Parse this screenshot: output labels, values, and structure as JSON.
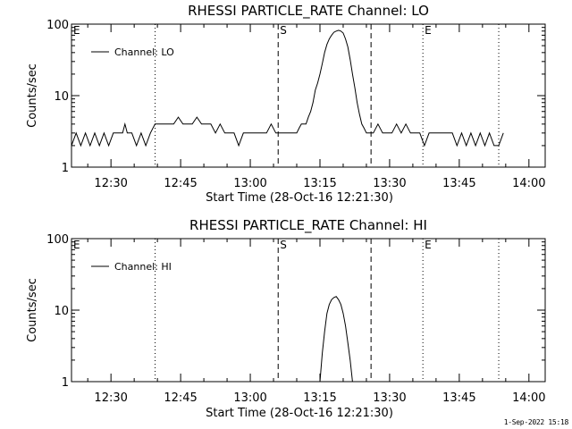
{
  "footer": {
    "timestamp": "1-Sep-2022 15:18"
  },
  "chart_data": [
    {
      "type": "line",
      "title": "RHESSI PARTICLE_RATE Channel: LO",
      "xlabel": "Start Time (28-Oct-16 12:21:30)",
      "ylabel": "Counts/sec",
      "yscale": "log",
      "ylim": [
        1,
        100
      ],
      "xlim": [
        "12:21:30",
        "14:03:30"
      ],
      "xticks": [
        "12:30",
        "12:45",
        "13:00",
        "13:15",
        "13:30",
        "13:45",
        "14:00"
      ],
      "yticks": [
        "1",
        "10",
        "100"
      ],
      "legend": {
        "position": "top-left",
        "entries": [
          "Channel: LO"
        ]
      },
      "grid": false,
      "markers": [
        {
          "label": "E",
          "time": "12:21:30",
          "style": "dotted"
        },
        {
          "label": "",
          "time": "12:39:30",
          "style": "dotted"
        },
        {
          "label": "S",
          "time": "13:06:00",
          "style": "dashed"
        },
        {
          "label": "",
          "time": "13:26:00",
          "style": "dashed"
        },
        {
          "label": "E",
          "time": "13:37:10",
          "style": "dotted"
        },
        {
          "label": "",
          "time": "13:53:30",
          "style": "dotted"
        }
      ],
      "series": [
        {
          "name": "Channel: LO",
          "x": [
            "12:21:30",
            "12:22:30",
            "12:23:30",
            "12:24:30",
            "12:25:30",
            "12:26:30",
            "12:27:30",
            "12:28:30",
            "12:29:30",
            "12:30:30",
            "12:31:30",
            "12:32:30",
            "12:33:00",
            "12:33:30",
            "12:34:30",
            "12:35:30",
            "12:36:30",
            "12:37:30",
            "12:38:30",
            "12:39:30",
            "12:40:30",
            "12:42:00",
            "12:43:30",
            "12:44:30",
            "12:45:30",
            "12:46:30",
            "12:47:30",
            "12:48:30",
            "12:49:30",
            "12:50:30",
            "12:51:30",
            "12:52:30",
            "12:53:30",
            "12:54:30",
            "12:55:30",
            "12:56:30",
            "12:57:30",
            "12:58:30",
            "12:59:30",
            "13:00:30",
            "13:01:30",
            "13:02:30",
            "13:03:30",
            "13:04:30",
            "13:05:30",
            "13:06:30",
            "13:07:30",
            "13:08:30",
            "13:09:30",
            "13:10:00",
            "13:10:30",
            "13:11:00",
            "13:11:30",
            "13:12:00",
            "13:12:30",
            "13:13:00",
            "13:13:30",
            "13:14:00",
            "13:14:30",
            "13:15:00",
            "13:15:30",
            "13:16:00",
            "13:16:30",
            "13:17:00",
            "13:17:30",
            "13:18:00",
            "13:18:30",
            "13:19:00",
            "13:19:30",
            "13:20:00",
            "13:20:30",
            "13:21:00",
            "13:21:30",
            "13:22:00",
            "13:22:30",
            "13:23:00",
            "13:23:30",
            "13:24:00",
            "13:24:30",
            "13:25:00",
            "13:25:30",
            "13:26:30",
            "13:27:30",
            "13:28:30",
            "13:29:30",
            "13:30:30",
            "13:31:30",
            "13:32:30",
            "13:33:30",
            "13:34:30",
            "13:35:30",
            "13:36:30",
            "13:37:30",
            "13:38:30",
            "13:39:30",
            "13:40:30",
            "13:41:30",
            "13:42:30",
            "13:43:30",
            "13:44:30",
            "13:45:30",
            "13:46:30",
            "13:47:30",
            "13:48:30",
            "13:49:30",
            "13:50:30",
            "13:51:30",
            "13:52:30",
            "13:53:30",
            "13:54:30"
          ],
          "y": [
            2,
            3,
            2,
            3,
            2,
            3,
            2,
            3,
            2,
            3,
            3,
            3,
            4,
            3,
            3,
            2,
            3,
            2,
            3,
            4,
            4,
            4,
            4,
            5,
            4,
            4,
            4,
            5,
            4,
            4,
            4,
            3,
            4,
            3,
            3,
            3,
            2,
            3,
            3,
            3,
            3,
            3,
            3,
            4,
            3,
            3,
            3,
            3,
            3,
            3,
            3.5,
            4,
            4,
            4,
            5,
            6,
            8,
            12,
            15,
            20,
            28,
            40,
            52,
            62,
            70,
            77,
            80,
            82,
            80,
            75,
            62,
            48,
            32,
            20,
            13,
            8,
            5.5,
            4,
            3.5,
            3,
            3,
            3,
            4,
            3,
            3,
            3,
            4,
            3,
            4,
            3,
            3,
            3,
            2,
            3,
            3,
            3,
            3,
            3,
            3,
            2,
            3,
            2,
            3,
            2,
            3,
            2,
            3,
            2,
            2,
            3
          ]
        }
      ]
    },
    {
      "type": "line",
      "title": "RHESSI PARTICLE_RATE Channel: HI",
      "xlabel": "Start Time (28-Oct-16 12:21:30)",
      "ylabel": "Counts/sec",
      "yscale": "log",
      "ylim": [
        1,
        100
      ],
      "xlim": [
        "12:21:30",
        "14:03:30"
      ],
      "xticks": [
        "12:30",
        "12:45",
        "13:00",
        "13:15",
        "13:30",
        "13:45",
        "14:00"
      ],
      "yticks": [
        "1",
        "10",
        "100"
      ],
      "legend": {
        "position": "top-left",
        "entries": [
          "Channel: HI"
        ]
      },
      "grid": false,
      "markers": [
        {
          "label": "E",
          "time": "12:21:30",
          "style": "dotted"
        },
        {
          "label": "",
          "time": "12:39:30",
          "style": "dotted"
        },
        {
          "label": "S",
          "time": "13:06:00",
          "style": "dashed"
        },
        {
          "label": "",
          "time": "13:26:00",
          "style": "dashed"
        },
        {
          "label": "E",
          "time": "13:37:10",
          "style": "dotted"
        },
        {
          "label": "",
          "time": "13:53:30",
          "style": "dotted"
        }
      ],
      "series": [
        {
          "name": "Channel: HI",
          "x": [
            "13:15:00",
            "13:15:30",
            "13:16:00",
            "13:16:30",
            "13:17:00",
            "13:17:30",
            "13:18:00",
            "13:18:30",
            "13:19:00",
            "13:19:30",
            "13:20:00",
            "13:20:30",
            "13:21:00",
            "13:21:30",
            "13:22:00"
          ],
          "y": [
            1,
            2.5,
            5,
            9,
            12,
            14,
            15,
            15.5,
            14,
            12,
            9,
            6,
            3.5,
            2,
            1
          ]
        }
      ]
    }
  ]
}
